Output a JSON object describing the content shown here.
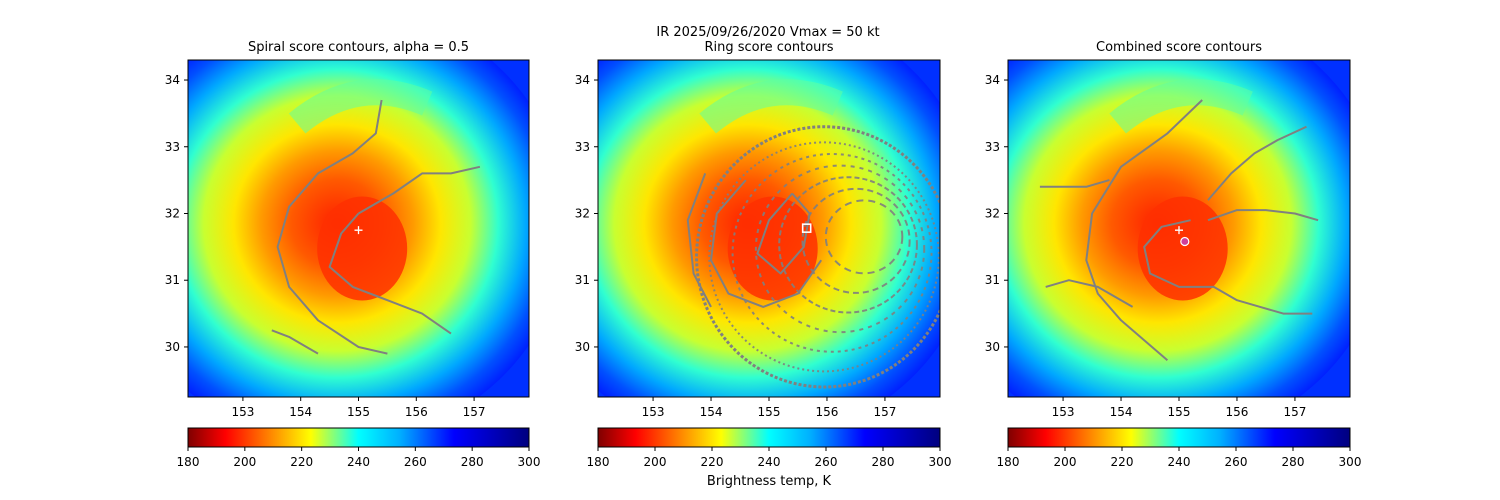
{
  "figure": {
    "suptitle": "IR  2025/09/26/2020    Vmax = 50 kt",
    "colorbar_label": "Brightness temp, K"
  },
  "colors": {
    "contour": "#808080",
    "marker": "#ffffff",
    "combined_marker": "#d0409a"
  },
  "chart_data": [
    {
      "type": "heatmap",
      "title": "Spiral score contours, alpha =  0.5",
      "xlim": [
        152.05,
        157.95
      ],
      "ylim": [
        29.25,
        34.3
      ],
      "xticks": [
        153,
        154,
        155,
        156,
        157
      ],
      "yticks": [
        30,
        31,
        32,
        33,
        34
      ],
      "center": {
        "x": 155.15,
        "y": 31.55
      },
      "marker": {
        "type": "plus",
        "x": 155.0,
        "y": 31.75
      },
      "contours": [
        [
          [
            155.4,
            33.7
          ],
          [
            155.3,
            33.2
          ],
          [
            154.9,
            32.9
          ],
          [
            154.3,
            32.6
          ],
          [
            153.8,
            32.1
          ],
          [
            153.6,
            31.5
          ],
          [
            153.8,
            30.9
          ],
          [
            154.3,
            30.4
          ],
          [
            155.0,
            30.0
          ],
          [
            155.5,
            29.9
          ]
        ],
        [
          [
            155.0,
            32.0
          ],
          [
            154.7,
            31.7
          ],
          [
            154.5,
            31.2
          ],
          [
            154.9,
            30.9
          ],
          [
            155.5,
            30.7
          ],
          [
            156.1,
            30.5
          ],
          [
            156.6,
            30.2
          ]
        ],
        [
          [
            155.0,
            32.0
          ],
          [
            155.6,
            32.3
          ],
          [
            156.1,
            32.6
          ],
          [
            156.6,
            32.6
          ],
          [
            157.1,
            32.7
          ]
        ],
        [
          [
            153.5,
            30.25
          ],
          [
            153.8,
            30.15
          ],
          [
            154.1,
            30.0
          ],
          [
            154.3,
            29.9
          ]
        ]
      ],
      "cmap_range": [
        180,
        300
      ],
      "cbar_ticks": [
        180,
        200,
        220,
        240,
        260,
        280,
        300
      ]
    },
    {
      "type": "heatmap",
      "title": "Ring score contours",
      "xlim": [
        152.05,
        157.95
      ],
      "ylim": [
        29.25,
        34.3
      ],
      "xticks": [
        153,
        154,
        155,
        156,
        157
      ],
      "yticks": [
        30,
        31,
        32,
        33,
        34
      ],
      "center": {
        "x": 155.15,
        "y": 31.55
      },
      "marker": {
        "type": "square",
        "x": 155.65,
        "y": 31.78
      },
      "ring_region": {
        "center": [
          155.95,
          31.35
        ],
        "rx": 2.2,
        "ry": 1.95
      },
      "contours": [
        [
          [
            155.4,
            32.3
          ],
          [
            155.0,
            31.9
          ],
          [
            154.8,
            31.4
          ],
          [
            155.2,
            31.1
          ],
          [
            155.6,
            31.5
          ],
          [
            155.7,
            32.0
          ],
          [
            155.4,
            32.3
          ]
        ],
        [
          [
            154.6,
            32.5
          ],
          [
            154.1,
            32.0
          ],
          [
            154.0,
            31.3
          ],
          [
            154.3,
            30.8
          ],
          [
            154.9,
            30.6
          ],
          [
            155.5,
            30.8
          ],
          [
            155.9,
            31.3
          ]
        ],
        [
          [
            153.9,
            32.6
          ],
          [
            153.6,
            31.9
          ],
          [
            153.7,
            31.1
          ],
          [
            154.0,
            30.6
          ]
        ]
      ],
      "cmap_range": [
        180,
        300
      ],
      "cbar_ticks": [
        180,
        200,
        220,
        240,
        260,
        280,
        300
      ]
    },
    {
      "type": "heatmap",
      "title": "Combined score contours",
      "xlim": [
        152.05,
        157.95
      ],
      "ylim": [
        29.25,
        34.3
      ],
      "xticks": [
        153,
        154,
        155,
        156,
        157
      ],
      "yticks": [
        30,
        31,
        32,
        33,
        34
      ],
      "center": {
        "x": 155.15,
        "y": 31.55
      },
      "marker": {
        "type": "plus",
        "x": 155.0,
        "y": 31.75
      },
      "marker2": {
        "type": "circle",
        "x": 155.1,
        "y": 31.58
      },
      "contours": [
        [
          [
            155.4,
            33.7
          ],
          [
            154.8,
            33.2
          ],
          [
            154.0,
            32.7
          ],
          [
            153.5,
            32.0
          ],
          [
            153.4,
            31.3
          ],
          [
            153.6,
            30.8
          ],
          [
            154.0,
            30.4
          ],
          [
            154.4,
            30.1
          ],
          [
            154.8,
            29.8
          ]
        ],
        [
          [
            155.2,
            31.9
          ],
          [
            154.7,
            31.8
          ],
          [
            154.4,
            31.5
          ],
          [
            154.5,
            31.1
          ],
          [
            155.0,
            30.9
          ],
          [
            155.6,
            30.9
          ],
          [
            156.0,
            30.7
          ],
          [
            156.4,
            30.6
          ],
          [
            156.8,
            30.5
          ],
          [
            157.3,
            30.5
          ]
        ],
        [
          [
            155.5,
            31.9
          ],
          [
            156.0,
            32.05
          ],
          [
            156.5,
            32.05
          ],
          [
            157.0,
            32.0
          ],
          [
            157.4,
            31.9
          ]
        ],
        [
          [
            155.5,
            32.2
          ],
          [
            155.9,
            32.6
          ],
          [
            156.3,
            32.9
          ],
          [
            156.7,
            33.1
          ],
          [
            157.2,
            33.3
          ]
        ],
        [
          [
            152.6,
            32.4
          ],
          [
            153.0,
            32.4
          ],
          [
            153.4,
            32.4
          ],
          [
            153.8,
            32.5
          ]
        ],
        [
          [
            152.7,
            30.9
          ],
          [
            153.1,
            31.0
          ],
          [
            153.6,
            30.9
          ],
          [
            154.2,
            30.6
          ]
        ]
      ],
      "cmap_range": [
        180,
        300
      ],
      "cbar_ticks": [
        180,
        200,
        220,
        240,
        260,
        280,
        300
      ]
    }
  ]
}
